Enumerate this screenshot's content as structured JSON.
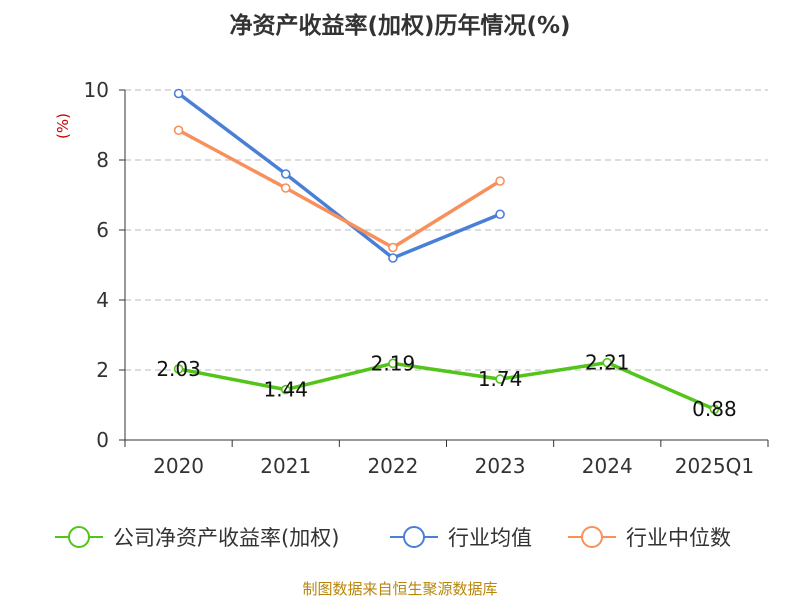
{
  "chart_data": {
    "type": "line",
    "title": "净资产收益率(加权)历年情况(%)",
    "ylabel": "(%)",
    "categories": [
      "2020",
      "2021",
      "2022",
      "2023",
      "2024",
      "2025Q1"
    ],
    "ylim": [
      0,
      10
    ],
    "yticks": [
      0,
      2,
      4,
      6,
      8,
      10
    ],
    "grid": true,
    "legend_position": "bottom",
    "series": [
      {
        "name": "公司净资产收益率(加权)",
        "color": "#52c41a",
        "values": [
          2.03,
          1.44,
          2.19,
          1.74,
          2.21,
          0.88
        ],
        "labels": [
          "2.03",
          "1.44",
          "2.19",
          "1.74",
          "2.21",
          "0.88"
        ]
      },
      {
        "name": "行业均值",
        "color": "#4a7fd8",
        "values": [
          9.9,
          7.6,
          5.2,
          6.45,
          null,
          null
        ]
      },
      {
        "name": "行业中位数",
        "color": "#f7905b",
        "values": [
          8.85,
          7.2,
          5.5,
          7.4,
          null,
          null
        ]
      }
    ]
  },
  "source": "制图数据来自恒生聚源数据库"
}
